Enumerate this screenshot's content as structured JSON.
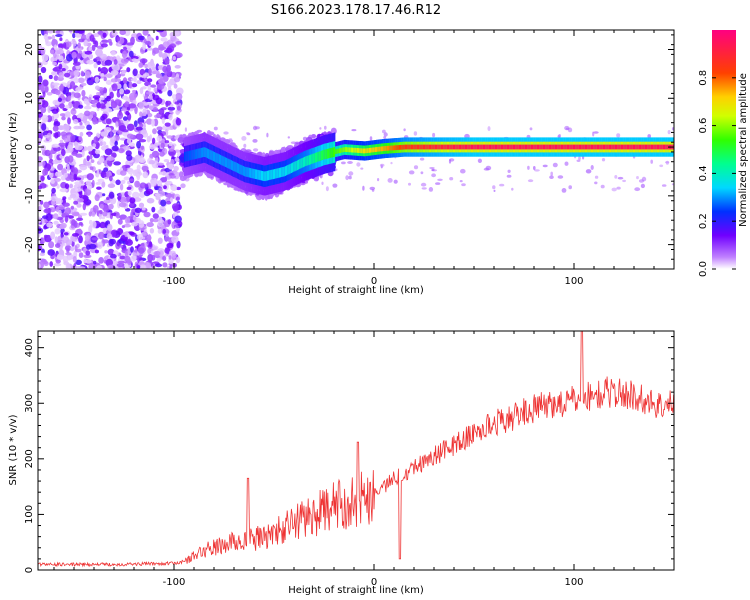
{
  "title": "S166.2023.178.17.46.R12",
  "chart_data": [
    {
      "type": "heatmap",
      "title": "S166.2023.178.17.46.R12",
      "xlabel": "Height of straight line (km)",
      "ylabel": "Frequency (Hz)",
      "xlim": [
        -168,
        150
      ],
      "ylim": [
        -25,
        24
      ],
      "xticks": [
        -100,
        0,
        100
      ],
      "yticks": [
        -20,
        -10,
        0,
        10,
        20
      ],
      "colorbar": {
        "label": "Normalized spectral amplitude",
        "range": [
          0,
          1
        ],
        "ticks": [
          0.0,
          0.2,
          0.4,
          0.6,
          0.8
        ]
      },
      "description_segments": [
        {
          "x_range": [
            -168,
            -97
          ],
          "pattern": "broadband noise, low amplitude"
        },
        {
          "x_range": [
            -97,
            -20
          ],
          "pattern": "scattered signal near 0 to -7 Hz"
        },
        {
          "x_range": [
            -20,
            150
          ],
          "pattern": "narrow line converging to 0 Hz, amplitude rising to 1.0"
        }
      ],
      "ridge": {
        "x": [
          -95,
          -85,
          -75,
          -65,
          -55,
          -45,
          -35,
          -25,
          -15,
          -5,
          5,
          15,
          30,
          50,
          80,
          100,
          150
        ],
        "frequency": [
          -2,
          -1,
          -3,
          -5,
          -6,
          -5,
          -3,
          -1.5,
          -0.5,
          -0.8,
          -0.3,
          0,
          0,
          0,
          0,
          0,
          0
        ],
        "amplitude": [
          0.25,
          0.3,
          0.3,
          0.3,
          0.35,
          0.35,
          0.4,
          0.5,
          0.6,
          0.7,
          0.75,
          0.85,
          0.9,
          0.95,
          0.95,
          0.95,
          0.95
        ]
      }
    },
    {
      "type": "line",
      "xlabel": "Height of straight line (km)",
      "ylabel": "SNR (10 * v/v)",
      "xlim": [
        -168,
        150
      ],
      "ylim": [
        0,
        430
      ],
      "xticks": [
        -100,
        0,
        100
      ],
      "yticks": [
        0,
        100,
        200,
        300,
        400
      ],
      "series": [
        {
          "name": "SNR",
          "color": "#ee3333",
          "x": [
            -168,
            -130,
            -100,
            -95,
            -90,
            -85,
            -80,
            -75,
            -70,
            -65,
            -60,
            -55,
            -50,
            -45,
            -40,
            -35,
            -30,
            -25,
            -20,
            -15,
            -10,
            -5,
            0,
            5,
            10,
            15,
            20,
            25,
            30,
            35,
            40,
            45,
            50,
            55,
            60,
            65,
            70,
            75,
            80,
            85,
            90,
            95,
            100,
            105,
            110,
            115,
            120,
            125,
            130,
            135,
            140,
            145,
            150
          ],
          "y": [
            10,
            10,
            12,
            15,
            25,
            35,
            40,
            45,
            50,
            55,
            55,
            60,
            65,
            75,
            85,
            95,
            100,
            105,
            115,
            120,
            125,
            130,
            140,
            150,
            165,
            175,
            185,
            195,
            205,
            215,
            225,
            235,
            245,
            255,
            265,
            270,
            275,
            285,
            290,
            295,
            300,
            300,
            305,
            315,
            310,
            320,
            320,
            315,
            315,
            305,
            300,
            295,
            300
          ]
        }
      ],
      "annotations": [
        {
          "x": -63,
          "y": 165,
          "text": "spike"
        },
        {
          "x": -8,
          "y": 230,
          "text": "spike"
        },
        {
          "x": 104,
          "y": 430,
          "text": "spike"
        },
        {
          "x": 13,
          "y": 20,
          "text": "dip"
        }
      ]
    }
  ],
  "colors": {
    "snr_line": "#ee3333",
    "axis": "#000000"
  }
}
